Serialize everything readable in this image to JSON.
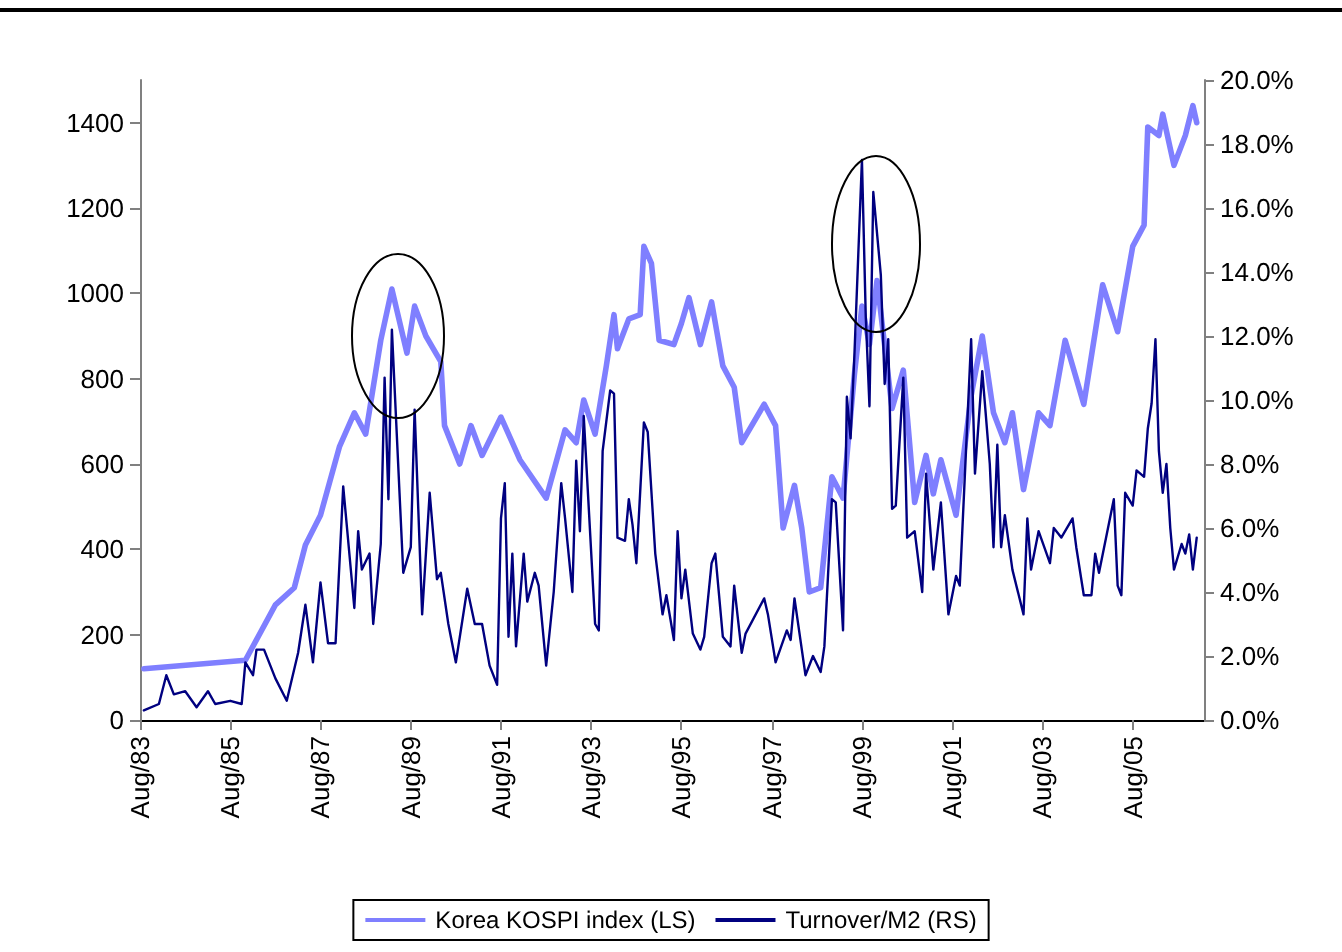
{
  "chart_data": {
    "type": "line",
    "legend": "bottom",
    "grid": false,
    "marker": "none",
    "line_style": "solid",
    "xlim": [
      "1983-08",
      "2007-03"
    ],
    "xticks": [
      {
        "value": "1983-08",
        "label": "Aug/83"
      },
      {
        "value": "1985-08",
        "label": "Aug/85"
      },
      {
        "value": "1987-08",
        "label": "Aug/87"
      },
      {
        "value": "1989-08",
        "label": "Aug/89"
      },
      {
        "value": "1991-08",
        "label": "Aug/91"
      },
      {
        "value": "1993-08",
        "label": "Aug/93"
      },
      {
        "value": "1995-08",
        "label": "Aug/95"
      },
      {
        "value": "1997-08",
        "label": "Aug/97"
      },
      {
        "value": "1999-08",
        "label": "Aug/99"
      },
      {
        "value": "2001-08",
        "label": "Aug/01"
      },
      {
        "value": "2003-08",
        "label": "Aug/03"
      },
      {
        "value": "2005-08",
        "label": "Aug/05"
      }
    ],
    "ylim": [
      0,
      1500
    ],
    "yticks": [
      0,
      200,
      400,
      600,
      800,
      1000,
      1200,
      1400
    ],
    "y2lim": [
      0,
      20
    ],
    "y2ticks": [
      {
        "value": 0,
        "label": "0.0%"
      },
      {
        "value": 2,
        "label": "2.0%"
      },
      {
        "value": 4,
        "label": "4.0%"
      },
      {
        "value": 6,
        "label": "6.0%"
      },
      {
        "value": 8,
        "label": "8.0%"
      },
      {
        "value": 10,
        "label": "10.0%"
      },
      {
        "value": 12,
        "label": "12.0%"
      },
      {
        "value": 14,
        "label": "14.0%"
      },
      {
        "value": 16,
        "label": "16.0%"
      },
      {
        "value": 18,
        "label": "18.0%"
      },
      {
        "value": 20,
        "label": "20.0%"
      }
    ],
    "series": [
      {
        "name": "Korea KOSPI index (LS)",
        "color": "#7f7fff",
        "x": [
          "1983-09",
          "1985-12",
          "1986-08",
          "1987-01",
          "1987-04",
          "1987-08",
          "1988-01",
          "1988-05",
          "1988-08",
          "1988-12",
          "1989-03",
          "1989-07",
          "1989-09",
          "1989-12",
          "1990-04",
          "1990-05",
          "1990-09",
          "1990-12",
          "1991-03",
          "1991-08",
          "1992-01",
          "1992-08",
          "1993-01",
          "1993-04",
          "1993-06",
          "1993-09",
          "1993-12",
          "1994-02",
          "1994-03",
          "1994-06",
          "1994-09",
          "1994-10",
          "1994-12",
          "1995-02",
          "1995-06",
          "1995-08",
          "1995-10",
          "1996-01",
          "1996-04",
          "1996-07",
          "1996-10",
          "1996-12",
          "1997-06",
          "1997-09",
          "1997-11",
          "1998-02",
          "1998-04",
          "1998-06",
          "1998-09",
          "1998-12",
          "1999-03",
          "1999-06",
          "1999-08",
          "1999-10",
          "1999-12",
          "2000-04",
          "2000-07",
          "2000-10",
          "2001-01",
          "2001-03",
          "2001-05",
          "2001-09",
          "2002-01",
          "2002-04",
          "2002-07",
          "2002-10",
          "2002-12",
          "2003-03",
          "2003-07",
          "2003-10",
          "2004-02",
          "2004-07",
          "2004-12",
          "2005-04",
          "2005-08",
          "2005-11",
          "2005-12",
          "2006-03",
          "2006-04",
          "2006-07",
          "2006-10",
          "2006-12",
          "2007-01"
        ],
        "values": [
          120,
          140,
          270,
          310,
          410,
          480,
          640,
          720,
          670,
          890,
          1010,
          860,
          970,
          900,
          840,
          690,
          600,
          690,
          620,
          710,
          610,
          520,
          680,
          650,
          750,
          670,
          830,
          950,
          870,
          940,
          950,
          1110,
          1070,
          890,
          880,
          930,
          990,
          880,
          980,
          830,
          780,
          650,
          740,
          690,
          450,
          550,
          450,
          300,
          310,
          570,
          520,
          810,
          970,
          880,
          1030,
          730,
          820,
          510,
          620,
          530,
          610,
          480,
          760,
          900,
          720,
          650,
          720,
          540,
          720,
          690,
          890,
          740,
          1020,
          910,
          1110,
          1160,
          1390,
          1370,
          1420,
          1300,
          1370,
          1440,
          1400
        ]
      },
      {
        "name": "Turnover/M2 (RS)",
        "color": "#000080",
        "axis": "y2",
        "x": [
          "1983-09",
          "1984-01",
          "1984-03",
          "1984-05",
          "1984-08",
          "1984-11",
          "1985-02",
          "1985-04",
          "1985-08",
          "1985-11",
          "1985-12",
          "1986-02",
          "1986-03",
          "1986-05",
          "1986-08",
          "1986-11",
          "1987-02",
          "1987-04",
          "1987-06",
          "1987-08",
          "1987-10",
          "1987-12",
          "1988-02",
          "1988-05",
          "1988-06",
          "1988-07",
          "1988-09",
          "1988-10",
          "1988-12",
          "1989-01",
          "1989-02",
          "1989-03",
          "1989-06",
          "1989-08",
          "1989-09",
          "1989-11",
          "1990-01",
          "1990-03",
          "1990-04",
          "1990-06",
          "1990-08",
          "1990-11",
          "1991-01",
          "1991-03",
          "1991-05",
          "1991-07",
          "1991-08",
          "1991-09",
          "1991-10",
          "1991-11",
          "1991-12",
          "1992-02",
          "1992-03",
          "1992-05",
          "1992-06",
          "1992-08",
          "1992-10",
          "1992-12",
          "1993-01",
          "1993-03",
          "1993-04",
          "1993-05",
          "1993-06",
          "1993-09",
          "1993-10",
          "1993-11",
          "1994-01",
          "1994-02",
          "1994-03",
          "1994-05",
          "1994-06",
          "1994-07",
          "1994-08",
          "1994-10",
          "1994-11",
          "1995-01",
          "1995-03",
          "1995-04",
          "1995-06",
          "1995-07",
          "1995-08",
          "1995-09",
          "1995-11",
          "1996-01",
          "1996-02",
          "1996-04",
          "1996-05",
          "1996-07",
          "1996-09",
          "1996-10",
          "1996-12",
          "1997-01",
          "1997-06",
          "1997-07",
          "1997-09",
          "1997-12",
          "1998-01",
          "1998-02",
          "1998-05",
          "1998-07",
          "1998-09",
          "1998-10",
          "1998-12",
          "1999-01",
          "1999-03",
          "1999-04",
          "1999-05",
          "1999-06",
          "1999-08",
          "1999-09",
          "1999-10",
          "1999-11",
          "2000-01",
          "2000-02",
          "2000-03",
          "2000-04",
          "2000-05",
          "2000-07",
          "2000-08",
          "2000-10",
          "2000-12",
          "2001-01",
          "2001-03",
          "2001-05",
          "2001-07",
          "2001-09",
          "2001-10",
          "2002-01",
          "2002-02",
          "2002-04",
          "2002-06",
          "2002-07",
          "2002-08",
          "2002-09",
          "2002-10",
          "2002-12",
          "2003-03",
          "2003-04",
          "2003-05",
          "2003-07",
          "2003-10",
          "2003-11",
          "2004-01",
          "2004-04",
          "2004-05",
          "2004-07",
          "2004-09",
          "2004-10",
          "2004-11",
          "2005-03",
          "2005-04",
          "2005-05",
          "2005-06",
          "2005-08",
          "2005-09",
          "2005-11",
          "2005-12",
          "2006-01",
          "2006-02",
          "2006-03",
          "2006-04",
          "2006-05",
          "2006-06",
          "2006-07",
          "2006-09",
          "2006-10",
          "2006-11",
          "2006-12",
          "2007-01"
        ],
        "values": [
          0.3,
          0.5,
          1.4,
          0.8,
          0.9,
          0.4,
          0.9,
          0.5,
          0.6,
          0.5,
          1.8,
          1.4,
          2.2,
          2.2,
          1.3,
          0.6,
          2.1,
          3.6,
          1.8,
          4.3,
          2.4,
          2.4,
          7.3,
          3.5,
          5.9,
          4.7,
          5.2,
          3.0,
          5.5,
          10.7,
          6.9,
          12.2,
          4.6,
          5.4,
          9.7,
          3.3,
          7.1,
          4.4,
          4.6,
          3.0,
          1.8,
          4.1,
          3.0,
          3.0,
          1.7,
          1.1,
          6.3,
          7.4,
          2.6,
          5.2,
          2.3,
          5.2,
          3.7,
          4.6,
          4.2,
          1.7,
          4.0,
          7.4,
          6.3,
          4.0,
          8.1,
          5.9,
          9.5,
          3.0,
          2.8,
          8.4,
          10.3,
          10.2,
          5.7,
          5.6,
          6.9,
          6.1,
          4.9,
          9.3,
          9.0,
          5.2,
          3.3,
          3.9,
          2.5,
          5.9,
          3.8,
          4.7,
          2.7,
          2.2,
          2.6,
          4.9,
          5.2,
          2.6,
          2.3,
          4.2,
          2.1,
          2.7,
          3.8,
          3.3,
          1.8,
          2.8,
          2.5,
          3.8,
          1.4,
          2.0,
          1.5,
          2.3,
          6.9,
          6.8,
          2.8,
          10.1,
          8.8,
          11.4,
          17.5,
          12.6,
          9.8,
          16.5,
          13.9,
          10.5,
          11.9,
          6.6,
          6.7,
          10.7,
          5.7,
          5.9,
          4.0,
          7.7,
          4.7,
          6.8,
          3.3,
          4.5,
          4.2,
          11.9,
          7.7,
          10.9,
          8.0,
          5.4,
          8.6,
          5.4,
          6.4,
          4.7,
          3.3,
          6.3,
          4.7,
          5.9,
          4.9,
          6.0,
          5.7,
          6.3,
          5.4,
          3.9,
          3.9,
          5.2,
          4.6,
          6.9,
          4.2,
          3.9,
          7.1,
          6.7,
          7.8,
          7.6,
          9.1,
          9.9,
          11.9,
          8.4,
          7.1,
          8.0,
          6.0,
          4.7,
          5.5,
          5.2,
          5.8,
          4.7,
          5.7
        ]
      }
    ]
  }
}
